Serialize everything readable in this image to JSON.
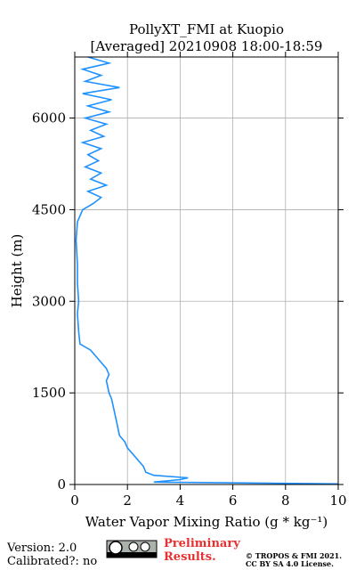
{
  "chart_data": {
    "type": "line",
    "title": "PollyXT_FMI at Kuopio",
    "subtitle": "[Averaged] 20210908 18:00-18:59",
    "x_label": "Water Vapor Mixing Ratio (g * kg⁻¹)",
    "y_label": "Height (m)",
    "color": "#1e90ff",
    "grid": true,
    "xlim": [
      0,
      10
    ],
    "xticks": [
      0,
      2,
      4,
      6,
      8,
      10
    ],
    "ylim": [
      0,
      7000
    ],
    "yticks": [
      0,
      1500,
      3000,
      4500,
      6000
    ],
    "heights": [
      10,
      40,
      80,
      110,
      150,
      200,
      300,
      400,
      500,
      600,
      700,
      800,
      1000,
      1200,
      1400,
      1500,
      1700,
      1800,
      1900,
      2000,
      2100,
      2200,
      2300,
      2500,
      2800,
      3000,
      3300,
      3600,
      4000,
      4300,
      4500,
      4600,
      4700,
      4800,
      4900,
      5000,
      5100,
      5200,
      5300,
      5400,
      5500,
      5600,
      5700,
      5800,
      5900,
      6000,
      6100,
      6200,
      6300,
      6400,
      6500,
      6600,
      6700,
      6800,
      6900,
      7000
    ],
    "values": [
      10,
      3.0,
      4.0,
      4.3,
      3.0,
      2.7,
      2.6,
      2.4,
      2.2,
      2.0,
      1.9,
      1.7,
      1.6,
      1.5,
      1.4,
      1.3,
      1.2,
      1.3,
      1.2,
      1.0,
      0.8,
      0.6,
      0.2,
      0.15,
      0.1,
      0.15,
      0.1,
      0.1,
      0.05,
      0.1,
      0.3,
      0.7,
      1.0,
      0.5,
      1.2,
      0.6,
      1.0,
      0.4,
      0.9,
      0.5,
      1.0,
      0.3,
      1.1,
      0.6,
      1.2,
      0.4,
      1.3,
      0.5,
      1.4,
      0.3,
      1.7,
      0.4,
      1.0,
      0.3,
      1.3,
      0.5
    ]
  },
  "footer": {
    "version": "Version: 2.0",
    "calibrated": "Calibrated?: no",
    "preliminary_1": "Preliminary",
    "preliminary_2": "Results.",
    "copyright_1": "© TROPOS & FMI 2021.",
    "copyright_2": "CC BY SA 4.0 License."
  }
}
